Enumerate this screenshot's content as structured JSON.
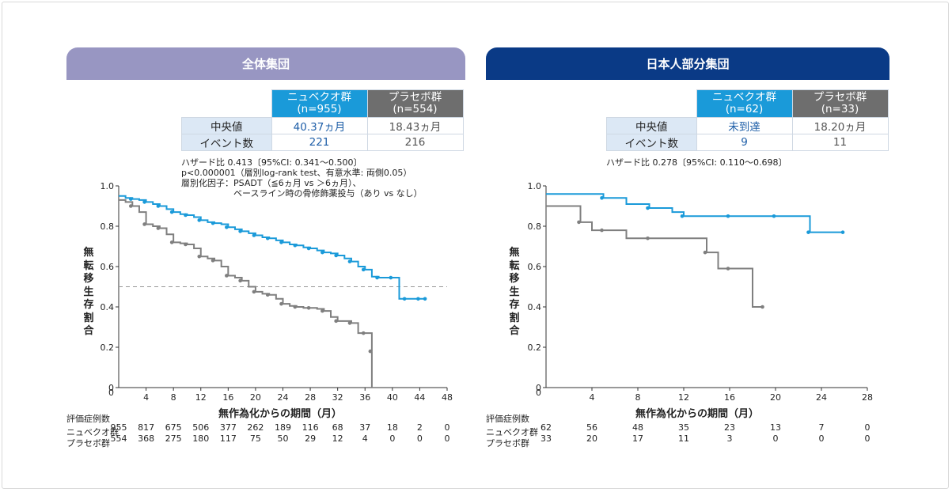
{
  "panels": [
    {
      "title": "全体集団",
      "table": {
        "header_nub": "ニュベクオ群\n(n=955)",
        "header_pla": "プラセボ群\n(n=554)",
        "rows": [
          {
            "label": "中央値",
            "nub": "40.37ヵ月",
            "pla": "18.43ヵ月"
          },
          {
            "label": "イベント数",
            "nub": "221",
            "pla": "216"
          }
        ]
      },
      "notes": "ハザード比 0.413〔95%CI: 0.341～0.500〕\np<0.000001（層別log-rank test、有意水準: 両側0.05）\n層別化因子：PSADT（≦6ヵ月 vs ＞6ヵ月）、\n　　　　　　ベースライン時の骨修飾薬投与（あり vs なし）",
      "risk_header": "評価症例数",
      "risk_rows": [
        {
          "label": "ニュベクオ群",
          "counts": [
            "955",
            "817",
            "675",
            "506",
            "377",
            "262",
            "189",
            "116",
            "68",
            "37",
            "18",
            "2",
            "0"
          ]
        },
        {
          "label": "プラセボ群",
          "counts": [
            "554",
            "368",
            "275",
            "180",
            "117",
            "75",
            "50",
            "29",
            "12",
            "4",
            "0",
            "0",
            "0"
          ]
        }
      ]
    },
    {
      "title": "日本人部分集団",
      "table": {
        "header_nub": "ニュベクオ群\n(n=62)",
        "header_pla": "プラセボ群\n(n=33)",
        "rows": [
          {
            "label": "中央値",
            "nub": "未到達",
            "pla": "18.20ヵ月"
          },
          {
            "label": "イベント数",
            "nub": "9",
            "pla": "11"
          }
        ]
      },
      "notes": "ハザード比 0.278〔95%CI: 0.110～0.698〕",
      "risk_header": "評価症例数",
      "risk_rows": [
        {
          "label": "ニュベクオ群",
          "counts": [
            "62",
            "56",
            "48",
            "35",
            "23",
            "13",
            "7",
            "0"
          ]
        },
        {
          "label": "プラセボ群",
          "counts": [
            "33",
            "20",
            "17",
            "11",
            "3",
            "0",
            "0",
            "0"
          ]
        }
      ]
    }
  ],
  "chart_data": [
    {
      "type": "line",
      "title": "全体集団",
      "xlabel": "無作為化からの期間（月）",
      "ylabel": "無転移生存割合",
      "xlim": [
        0,
        48
      ],
      "ylim": [
        0,
        1.0
      ],
      "xticks": [
        "4",
        "8",
        "12",
        "16",
        "20",
        "24",
        "28",
        "32",
        "36",
        "40",
        "44",
        "48"
      ],
      "yticks": [
        "0",
        "0.2",
        "0.4",
        "0.6",
        "0.8",
        "1.0"
      ],
      "x_origin_label": "0",
      "reference_line_y": 0.5,
      "series": [
        {
          "name": "ニュベクオ群",
          "color": "#1a9ad9",
          "x": [
            0,
            1,
            2,
            3,
            4,
            5,
            6,
            7,
            8,
            9,
            10,
            11,
            12,
            13,
            14,
            15,
            16,
            17,
            18,
            19,
            20,
            21,
            22,
            23,
            24,
            25,
            26,
            27,
            28,
            29,
            30,
            31,
            32,
            33,
            34,
            35,
            36,
            37,
            38,
            39,
            40,
            41,
            42,
            43,
            44,
            45
          ],
          "y": [
            0.95,
            0.94,
            0.935,
            0.93,
            0.92,
            0.91,
            0.9,
            0.885,
            0.87,
            0.86,
            0.855,
            0.845,
            0.83,
            0.82,
            0.815,
            0.81,
            0.795,
            0.785,
            0.775,
            0.765,
            0.755,
            0.745,
            0.74,
            0.73,
            0.72,
            0.71,
            0.705,
            0.695,
            0.69,
            0.68,
            0.67,
            0.665,
            0.655,
            0.64,
            0.625,
            0.6,
            0.585,
            0.55,
            0.545,
            0.545,
            0.545,
            0.44,
            0.44,
            0.44,
            0.44,
            0.44
          ]
        },
        {
          "name": "プラセボ群",
          "color": "#7f7f7f",
          "x": [
            0,
            1,
            2,
            3,
            4,
            5,
            6,
            7,
            8,
            9,
            10,
            11,
            12,
            13,
            14,
            15,
            16,
            17,
            18,
            19,
            20,
            21,
            22,
            23,
            24,
            25,
            26,
            27,
            28,
            29,
            30,
            31,
            32,
            33,
            34,
            35,
            36,
            37
          ],
          "y": [
            0.93,
            0.92,
            0.9,
            0.87,
            0.81,
            0.8,
            0.79,
            0.76,
            0.72,
            0.715,
            0.71,
            0.69,
            0.65,
            0.64,
            0.63,
            0.6,
            0.555,
            0.545,
            0.53,
            0.5,
            0.475,
            0.465,
            0.46,
            0.44,
            0.415,
            0.405,
            0.4,
            0.395,
            0.395,
            0.39,
            0.38,
            0.35,
            0.33,
            0.33,
            0.32,
            0.27,
            0.27,
            0.18
          ]
        }
      ]
    },
    {
      "type": "line",
      "title": "日本人部分集団",
      "xlabel": "無作為化からの期間（月）",
      "ylabel": "無転移生存割合",
      "xlim": [
        0,
        28
      ],
      "ylim": [
        0,
        1.0
      ],
      "xticks": [
        "4",
        "8",
        "12",
        "16",
        "20",
        "24",
        "28"
      ],
      "yticks": [
        "0",
        "0.2",
        "0.4",
        "0.6",
        "0.8",
        "1.0"
      ],
      "x_origin_label": "0",
      "series": [
        {
          "name": "ニュベクオ群",
          "color": "#1a9ad9",
          "x": [
            0,
            4,
            5,
            7,
            9,
            11,
            12,
            14,
            16,
            18,
            20,
            22,
            23,
            24,
            26
          ],
          "y": [
            0.96,
            0.96,
            0.94,
            0.91,
            0.89,
            0.87,
            0.85,
            0.85,
            0.85,
            0.85,
            0.85,
            0.85,
            0.77,
            0.77,
            0.77
          ]
        },
        {
          "name": "プラセボ群",
          "color": "#7f7f7f",
          "x": [
            0,
            2,
            3,
            4,
            5,
            7,
            9,
            11,
            14,
            15,
            16,
            18,
            19
          ],
          "y": [
            0.9,
            0.9,
            0.82,
            0.78,
            0.78,
            0.74,
            0.74,
            0.74,
            0.67,
            0.59,
            0.59,
            0.4,
            0.4
          ]
        }
      ]
    }
  ]
}
